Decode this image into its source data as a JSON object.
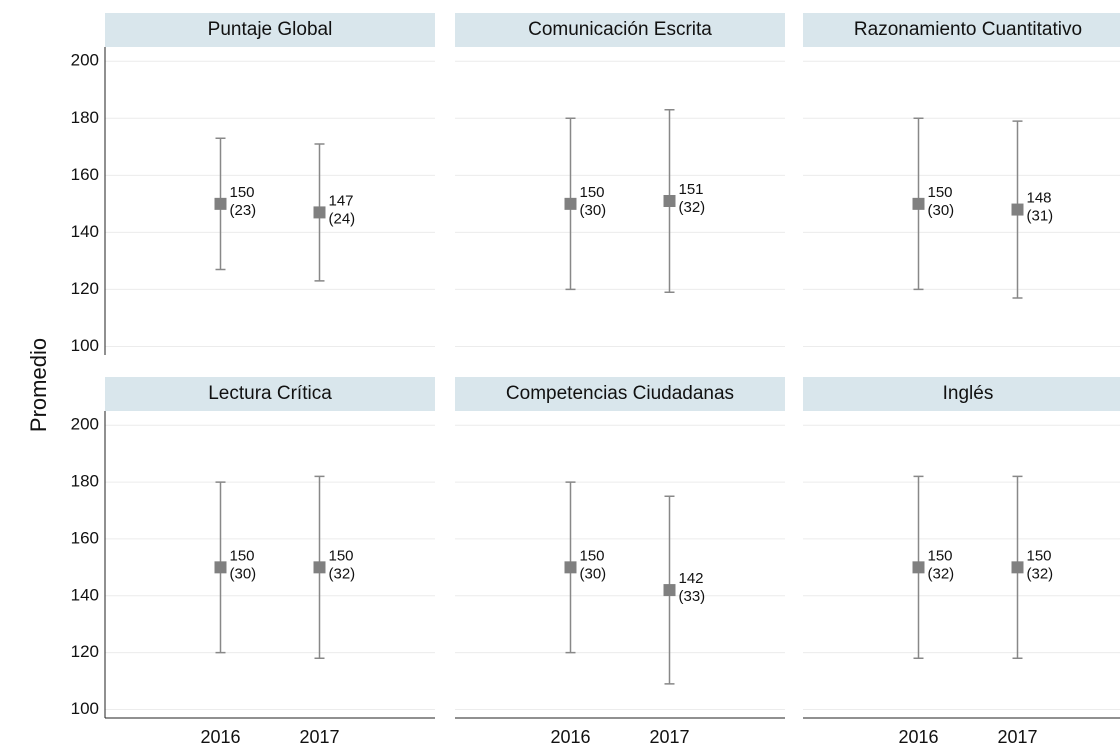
{
  "ylabel": "Promedio",
  "chart_data": [
    {
      "type": "errorbar",
      "title": "Puntaje Global",
      "categories": [
        "2016",
        "2017"
      ],
      "values": [
        150,
        147
      ],
      "errors": [
        23,
        24
      ],
      "error_labels": [
        "(23)",
        "(24)"
      ],
      "ylim": [
        97,
        205
      ],
      "yticks": [
        100,
        120,
        140,
        160,
        180,
        200
      ],
      "grid": true,
      "color": "#808080"
    },
    {
      "type": "errorbar",
      "title": "Comunicación Escrita",
      "categories": [
        "2016",
        "2017"
      ],
      "values": [
        150,
        151
      ],
      "errors": [
        30,
        32
      ],
      "error_labels": [
        "(30)",
        "(32)"
      ],
      "ylim": [
        97,
        205
      ],
      "yticks": [
        100,
        120,
        140,
        160,
        180,
        200
      ],
      "grid": true,
      "color": "#808080"
    },
    {
      "type": "errorbar",
      "title": "Razonamiento Cuantitativo",
      "categories": [
        "2016",
        "2017"
      ],
      "values": [
        150,
        148
      ],
      "errors": [
        30,
        31
      ],
      "error_labels": [
        "(30)",
        "(31)"
      ],
      "ylim": [
        97,
        205
      ],
      "yticks": [
        100,
        120,
        140,
        160,
        180,
        200
      ],
      "grid": true,
      "color": "#808080"
    },
    {
      "type": "errorbar",
      "title": "Lectura Crítica",
      "categories": [
        "2016",
        "2017"
      ],
      "values": [
        150,
        150
      ],
      "errors": [
        30,
        32
      ],
      "error_labels": [
        "(30)",
        "(32)"
      ],
      "ylim": [
        97,
        205
      ],
      "yticks": [
        100,
        120,
        140,
        160,
        180,
        200
      ],
      "grid": true,
      "color": "#808080"
    },
    {
      "type": "errorbar",
      "title": "Competencias Ciudadanas",
      "categories": [
        "2016",
        "2017"
      ],
      "values": [
        150,
        142
      ],
      "errors": [
        30,
        33
      ],
      "error_labels": [
        "(30)",
        "(33)"
      ],
      "ylim": [
        97,
        205
      ],
      "yticks": [
        100,
        120,
        140,
        160,
        180,
        200
      ],
      "grid": true,
      "color": "#808080"
    },
    {
      "type": "errorbar",
      "title": "Inglés",
      "categories": [
        "2016",
        "2017"
      ],
      "values": [
        150,
        150
      ],
      "errors": [
        32,
        32
      ],
      "error_labels": [
        "(32)",
        "(32)"
      ],
      "ylim": [
        97,
        205
      ],
      "yticks": [
        100,
        120,
        140,
        160,
        180,
        200
      ],
      "grid": true,
      "color": "#808080"
    }
  ]
}
